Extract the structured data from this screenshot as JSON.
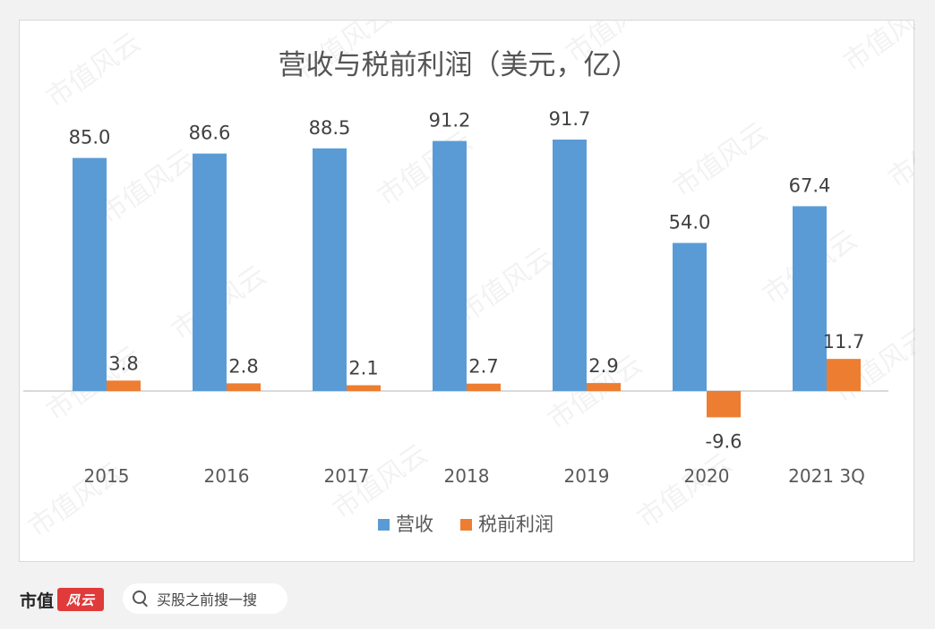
{
  "chart_data": {
    "type": "bar",
    "title": "营收与税前利润（美元，亿）",
    "categories": [
      "2015",
      "2016",
      "2017",
      "2018",
      "2019",
      "2020",
      "2021 3Q"
    ],
    "series": [
      {
        "name": "营收",
        "values": [
          85.0,
          86.6,
          88.5,
          91.2,
          91.7,
          54.0,
          67.4
        ],
        "color": "#5b9bd5"
      },
      {
        "name": "税前利润",
        "values": [
          3.8,
          2.8,
          2.1,
          2.7,
          2.9,
          -9.6,
          11.7
        ],
        "color": "#ed7d31"
      }
    ],
    "legend": "bottom",
    "grid": false
  },
  "watermark_text": "市值风云",
  "footer": {
    "brand_name": "市值",
    "brand_seal": "风云",
    "search_placeholder": "买股之前搜一搜"
  }
}
